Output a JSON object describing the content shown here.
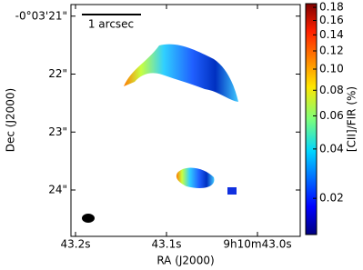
{
  "chart_data": {
    "type": "image",
    "xlabel": "RA (J2000)",
    "ylabel": "Dec (J2000)",
    "xlim": [
      43.205,
      42.953
    ],
    "xticks": [
      {
        "value": 43.2,
        "label": "43.2s"
      },
      {
        "value": 43.1,
        "label": "43.1s"
      },
      {
        "value": 43.0,
        "label": "9h10m43.0s"
      }
    ],
    "ylim": [
      20.8,
      24.8
    ],
    "yticks": [
      {
        "value": 21,
        "label": "-0°03'21\""
      },
      {
        "value": 22,
        "label": "22\""
      },
      {
        "value": 23,
        "label": "23\""
      },
      {
        "value": 24,
        "label": "24\""
      }
    ],
    "scalebar_label": "1 arcsec",
    "colorbar": {
      "label": "[CII]/FIR (%)",
      "scale": "power",
      "exponent": 0.25,
      "lim": [
        0.011,
        0.186
      ],
      "ticks": [
        0.18,
        0.16,
        0.14,
        0.12,
        {
          "value": 0.1,
          "label": "0.10"
        },
        0.08,
        0.06,
        0.04,
        0.02
      ]
    }
  }
}
